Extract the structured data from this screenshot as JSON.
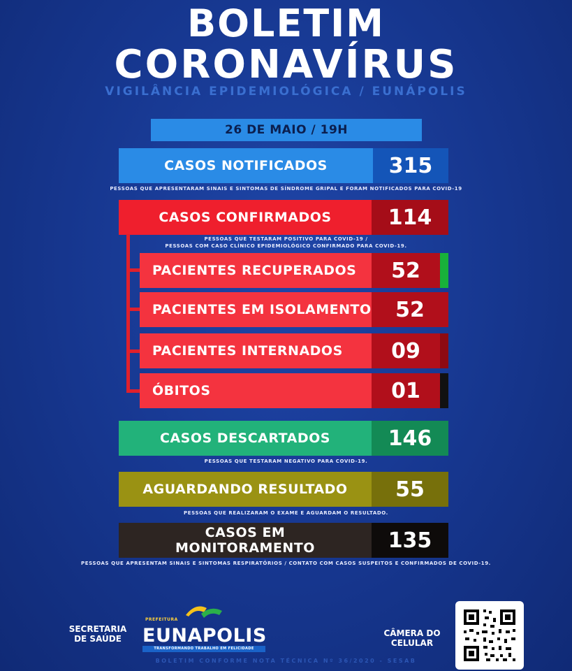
{
  "header": {
    "title_line1": "BOLETIM",
    "title_line2": "CORONAVÍRUS",
    "subtitle": "VIGILÂNCIA EPIDEMIOLÓGICA / EUNÁPOLIS",
    "date": "26 DE MAIO / 19H"
  },
  "stats": {
    "notificados": {
      "label": "CASOS NOTIFICADOS",
      "value": "315",
      "note": "PESSOAS QUE APRESENTARAM SINAIS E SINTOMAS DE SÍNDROME GRIPAL E FORAM NOTIFICADOS PARA COVID-19",
      "color": "#2a8be6"
    },
    "confirmados": {
      "label": "CASOS CONFIRMADOS",
      "value": "114",
      "note1": "PESSOAS QUE TESTARAM POSITIVO PARA COVID-19 /",
      "note2": "PESSOAS COM CASO CLÍNICO EPIDEMIOLÓGICO CONFIRMADO PARA COVID-19.",
      "color": "#e0202c"
    },
    "recuperados": {
      "label": "PACIENTES RECUPERADOS",
      "value": "52",
      "accent": "#18b13a"
    },
    "isolamento": {
      "label": "PACIENTES EM ISOLAMENTO",
      "value": "52"
    },
    "internados": {
      "label": "PACIENTES INTERNADOS",
      "value": "09"
    },
    "obitos": {
      "label": "ÓBITOS",
      "value": "01",
      "accent": "#111111"
    },
    "descartados": {
      "label": "CASOS DESCARTADOS",
      "value": "146",
      "note": "PESSOAS QUE TESTARAM NEGATIVO PARA COVID-19.",
      "color": "#22b27a"
    },
    "aguardando": {
      "label": "AGUARDANDO RESULTADO",
      "value": "55",
      "note": "PESSOAS QUE REALIZARAM O EXAME E AGUARDAM O RESULTADO.",
      "color": "#8f8a12"
    },
    "monitoramento": {
      "label_line1": "CASOS EM",
      "label_line2": "MONITORAMENTO",
      "value": "135",
      "note": "PESSOAS QUE APRESENTAM SINAIS E SINTOMAS RESPIRATÓRIOS / CONTATO COM CASOS SUSPEITOS  E CONFIRMADOS DE COVID-19.",
      "color": "#2d2522"
    }
  },
  "footer": {
    "secretaria_line1": "SECRETARIA",
    "secretaria_line2": "DE SAÚDE",
    "logo_prefix": "PREFEITURA",
    "logo_name": "EUNAPOLIS",
    "logo_tagline": "TRANSFORMANDO TRABALHO EM FELICIDADE",
    "camera_line1": "CÂMERA DO",
    "camera_line2": "CELULAR",
    "qr_icon": "qr-code-icon",
    "bottom_line": "BOLETIM CONFORME NOTA TÉCNICA Nº 36/2020 - SESAB"
  }
}
